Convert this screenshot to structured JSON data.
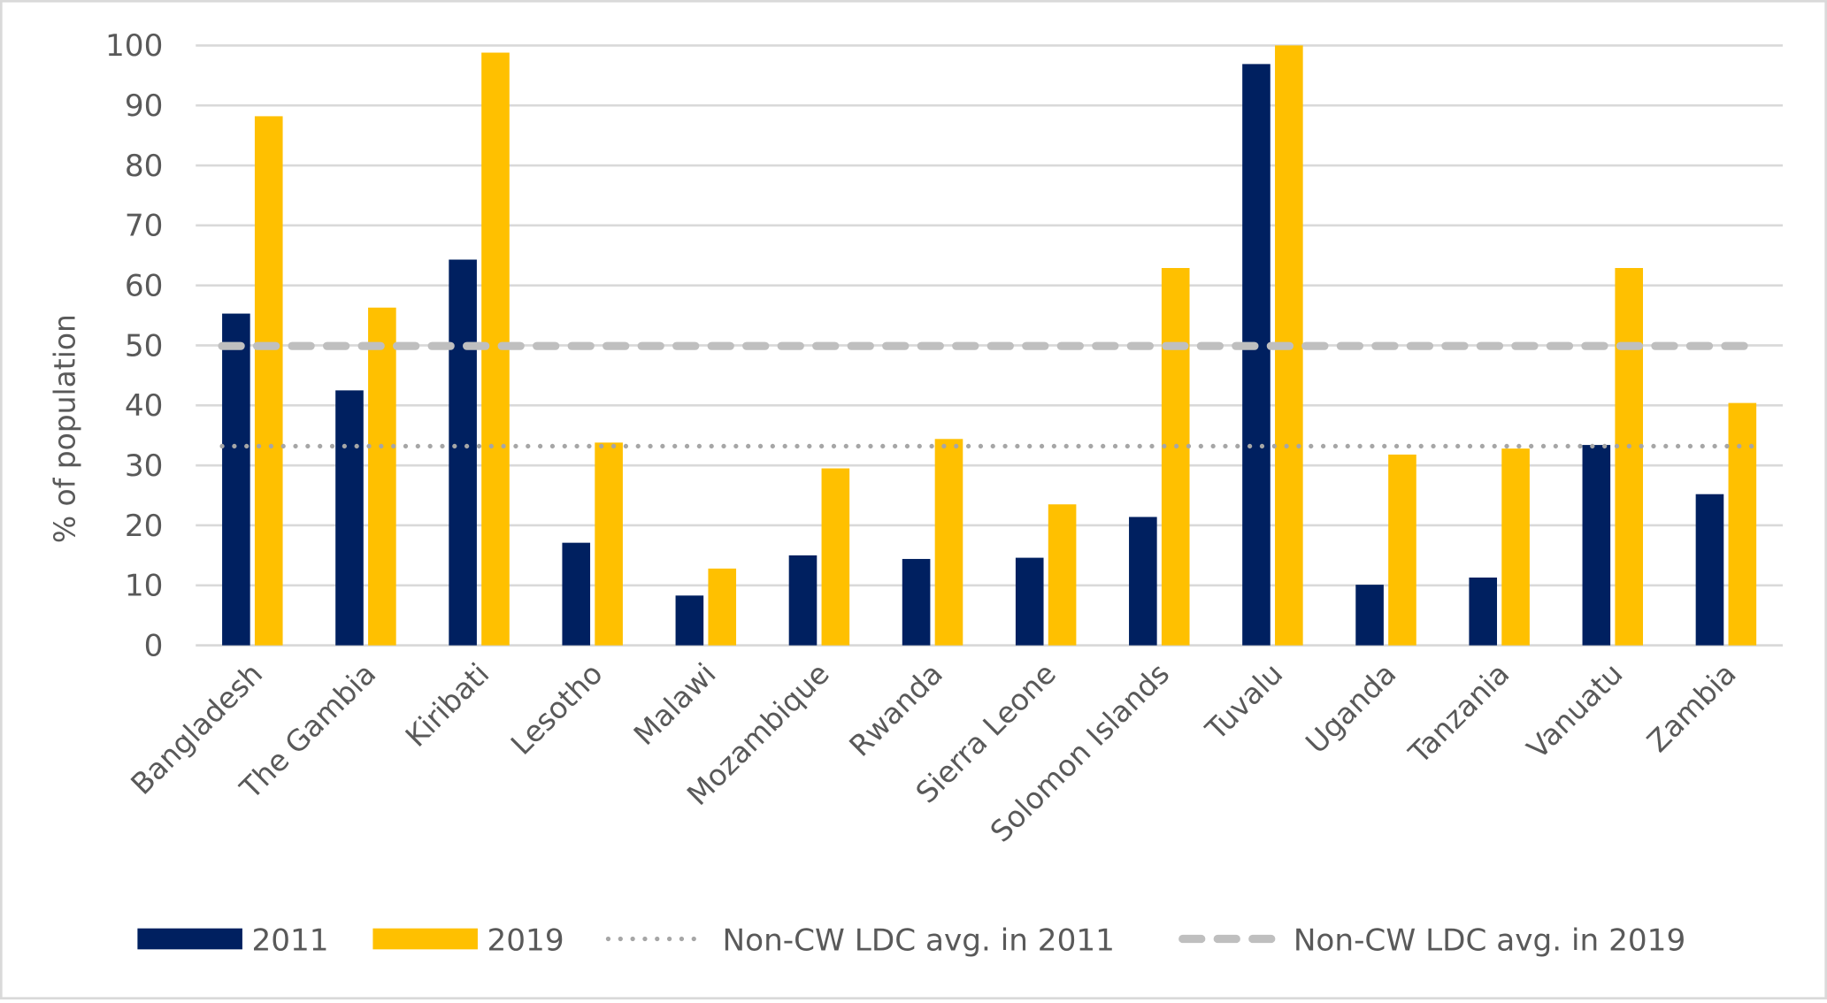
{
  "chart_data": {
    "type": "bar",
    "title": "",
    "xlabel": "",
    "ylabel": "% of population",
    "ylim": [
      0,
      100
    ],
    "yticks": [
      0,
      10,
      20,
      30,
      40,
      50,
      60,
      70,
      80,
      90,
      100
    ],
    "grid": true,
    "legend_position": "bottom",
    "categories": [
      "Bangladesh",
      "The Gambia",
      "Kiribati",
      "Lesotho",
      "Malawi",
      "Mozambique",
      "Rwanda",
      "Sierra Leone",
      "Solomon Islands",
      "Tuvalu",
      "Uganda",
      "Tanzania",
      "Vanuatu",
      "Zambia"
    ],
    "series": [
      {
        "name": "2011",
        "color": "#002060",
        "values": [
          55.3,
          42.5,
          64.3,
          17.1,
          8.3,
          15.0,
          14.4,
          14.6,
          21.4,
          96.9,
          10.1,
          11.3,
          33.4,
          25.2
        ]
      },
      {
        "name": "2019",
        "color": "#FFC000",
        "values": [
          88.2,
          56.3,
          98.8,
          33.8,
          12.8,
          29.5,
          34.4,
          23.5,
          62.9,
          100.0,
          31.8,
          32.8,
          62.9,
          40.4
        ]
      }
    ],
    "reference_lines": [
      {
        "name": "Non-CW LDC avg. in 2011",
        "value": 33.2,
        "style": "dotted",
        "color": "#A6A6A6"
      },
      {
        "name": "Non-CW LDC avg. in 2019",
        "value": 49.9,
        "style": "dashed",
        "color": "#BFBFBF"
      }
    ]
  }
}
